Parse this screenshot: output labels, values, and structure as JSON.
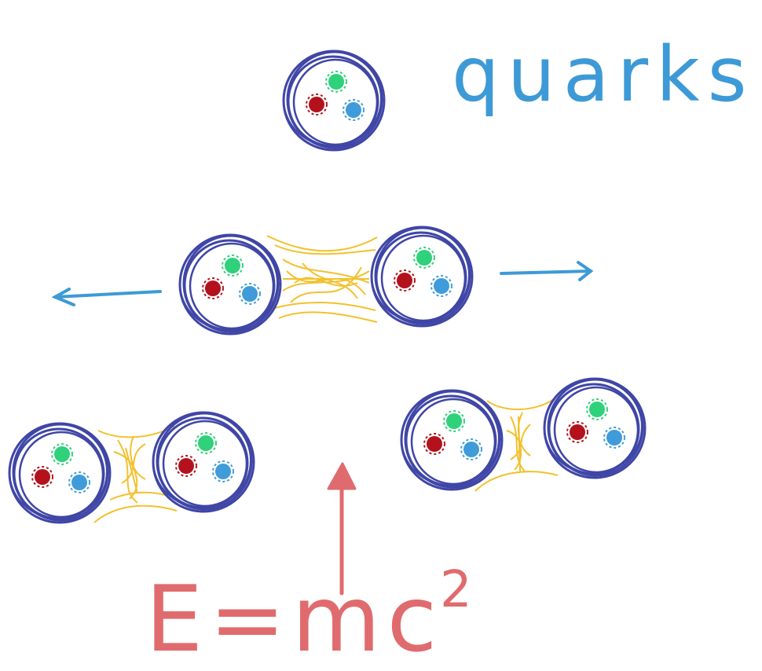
{
  "labels": {
    "quarks": "quarks",
    "equation": "E=mc",
    "equation_superscript": "2"
  },
  "colors": {
    "hadron_ring": "#3f46a6",
    "quark_red": "#b3121c",
    "quark_green": "#2fd17a",
    "quark_blue": "#3f9bd9",
    "gluon_field": "#f2c12e",
    "arrow_blue": "#3d9ad6",
    "energy_red": "#e06b6e",
    "label_blue": "#3d9ad6"
  },
  "arrows": {
    "left": "pull-left",
    "right": "pull-right",
    "energy": "energy-input-up"
  }
}
